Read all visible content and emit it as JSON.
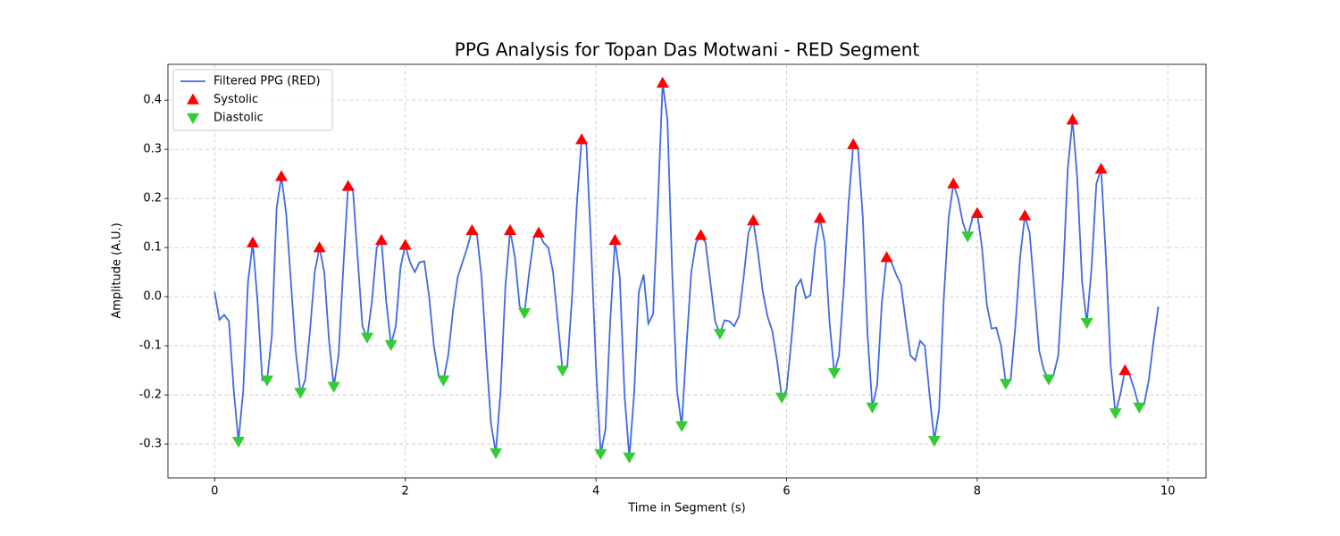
{
  "chart_data": {
    "type": "line",
    "title": "PPG Analysis for Topan Das Motwani - RED Segment",
    "x_label": "Time in Segment (s)",
    "y_label": "Amplitude (A.U.)",
    "xlim": [
      -0.49,
      10.4
    ],
    "ylim": [
      -0.369,
      0.473
    ],
    "xticks": [
      0,
      2,
      4,
      6,
      8,
      10
    ],
    "yticks": [
      -0.3,
      -0.2,
      -0.1,
      {
        "value": 0,
        "label": "0.0"
      },
      0.1,
      0.2,
      0.3,
      0.4
    ],
    "grid": true,
    "legend": "upper left",
    "series": [
      {
        "name": "Filtered PPG (RED)",
        "color": "#4169e1",
        "marker": "line",
        "x": [
          0,
          0.05,
          0.1,
          0.15,
          0.2,
          0.25,
          0.3,
          0.35,
          0.4,
          0.45,
          0.5,
          0.55,
          0.6,
          0.65,
          0.7,
          0.75,
          0.8,
          0.85,
          0.9,
          0.95,
          1.0,
          1.05,
          1.1,
          1.15,
          1.2,
          1.25,
          1.3,
          1.35,
          1.4,
          1.45,
          1.5,
          1.55,
          1.6,
          1.65,
          1.7,
          1.75,
          1.8,
          1.85,
          1.9,
          1.95,
          2.0,
          2.05,
          2.1,
          2.15,
          2.2,
          2.25,
          2.3,
          2.35,
          2.4,
          2.45,
          2.5,
          2.55,
          2.6,
          2.65,
          2.7,
          2.75,
          2.8,
          2.85,
          2.9,
          2.95,
          3.0,
          3.05,
          3.1,
          3.15,
          3.2,
          3.25,
          3.3,
          3.35,
          3.4,
          3.45,
          3.5,
          3.55,
          3.6,
          3.65,
          3.7,
          3.75,
          3.8,
          3.85,
          3.9,
          3.95,
          4.0,
          4.05,
          4.1,
          4.15,
          4.2,
          4.25,
          4.3,
          4.35,
          4.4,
          4.45,
          4.5,
          4.55,
          4.6,
          4.65,
          4.7,
          4.75,
          4.8,
          4.85,
          4.9,
          4.95,
          5.0,
          5.05,
          5.1,
          5.15,
          5.2,
          5.25,
          5.3,
          5.35,
          5.4,
          5.45,
          5.5,
          5.55,
          5.6,
          5.65,
          5.7,
          5.75,
          5.8,
          5.85,
          5.9,
          5.95,
          6.0,
          6.05,
          6.1,
          6.15,
          6.2,
          6.25,
          6.3,
          6.35,
          6.4,
          6.45,
          6.5,
          6.55,
          6.6,
          6.65,
          6.7,
          6.75,
          6.8,
          6.85,
          6.9,
          6.95,
          7.0,
          7.05,
          7.1,
          7.15,
          7.2,
          7.25,
          7.3,
          7.35,
          7.4,
          7.45,
          7.5,
          7.55,
          7.6,
          7.65,
          7.7,
          7.75,
          7.8,
          7.85,
          7.9,
          7.95,
          8.0,
          8.05,
          8.1,
          8.15,
          8.2,
          8.25,
          8.3,
          8.35,
          8.4,
          8.45,
          8.5,
          8.55,
          8.6,
          8.65,
          8.7,
          8.75,
          8.8,
          8.85,
          8.9,
          8.95,
          9.0,
          9.05,
          9.1,
          9.15,
          9.2,
          9.25,
          9.3,
          9.35,
          9.4,
          9.45,
          9.5,
          9.55,
          9.6,
          9.65,
          9.7,
          9.75,
          9.8,
          9.85,
          9.9
        ],
        "values": [
          0.01,
          -0.047,
          -0.037,
          -0.05,
          -0.19,
          -0.295,
          -0.19,
          0.03,
          0.11,
          -0.01,
          -0.17,
          -0.17,
          -0.08,
          0.18,
          0.245,
          0.17,
          0.03,
          -0.11,
          -0.195,
          -0.17,
          -0.07,
          0.05,
          0.1,
          0.05,
          -0.09,
          -0.183,
          -0.12,
          0.06,
          0.225,
          0.22,
          0.08,
          -0.06,
          -0.083,
          -0.01,
          0.1,
          0.115,
          -0.01,
          -0.098,
          -0.06,
          0.06,
          0.105,
          0.07,
          0.05,
          0.07,
          0.072,
          0.0,
          -0.1,
          -0.16,
          -0.17,
          -0.12,
          -0.03,
          0.04,
          0.07,
          0.1,
          0.135,
          0.13,
          0.04,
          -0.12,
          -0.26,
          -0.318,
          -0.19,
          0.02,
          0.135,
          0.08,
          -0.02,
          -0.033,
          0.05,
          0.12,
          0.13,
          0.11,
          0.1,
          0.05,
          -0.05,
          -0.15,
          -0.14,
          0.0,
          0.19,
          0.32,
          0.31,
          0.1,
          -0.14,
          -0.32,
          -0.27,
          -0.05,
          0.115,
          0.04,
          -0.2,
          -0.327,
          -0.2,
          0.01,
          0.045,
          -0.055,
          -0.035,
          0.19,
          0.435,
          0.36,
          0.05,
          -0.19,
          -0.263,
          -0.1,
          0.05,
          0.11,
          0.125,
          0.11,
          0.03,
          -0.05,
          -0.075,
          -0.048,
          -0.05,
          -0.06,
          -0.04,
          0.04,
          0.13,
          0.155,
          0.09,
          0.01,
          -0.04,
          -0.07,
          -0.13,
          -0.205,
          -0.19,
          -0.09,
          0.02,
          0.035,
          -0.003,
          0.003,
          0.1,
          0.16,
          0.11,
          -0.05,
          -0.155,
          -0.12,
          0.02,
          0.19,
          0.31,
          0.3,
          0.16,
          -0.08,
          -0.225,
          -0.18,
          -0.01,
          0.08,
          0.07,
          0.045,
          0.025,
          -0.05,
          -0.12,
          -0.13,
          -0.09,
          -0.1,
          -0.2,
          -0.293,
          -0.23,
          0.0,
          0.16,
          0.23,
          0.2,
          0.15,
          0.123,
          0.16,
          0.17,
          0.1,
          -0.015,
          -0.065,
          -0.063,
          -0.1,
          -0.177,
          -0.17,
          -0.06,
          0.08,
          0.165,
          0.13,
          0.01,
          -0.11,
          -0.15,
          -0.168,
          -0.16,
          -0.12,
          0.04,
          0.26,
          0.36,
          0.24,
          0.03,
          -0.053,
          0.06,
          0.23,
          0.26,
          0.08,
          -0.14,
          -0.237,
          -0.2,
          -0.15,
          -0.16,
          -0.19,
          -0.225,
          -0.22,
          -0.17,
          -0.09,
          -0.02
        ]
      },
      {
        "name": "Systolic",
        "color": "#ff0000",
        "marker": "up",
        "x": [
          0.4,
          0.7,
          1.1,
          1.4,
          1.75,
          2.0,
          2.7,
          3.1,
          3.4,
          3.85,
          4.2,
          4.7,
          5.1,
          5.65,
          6.35,
          6.7,
          7.05,
          7.75,
          8.0,
          8.5,
          9.0,
          9.3,
          9.55
        ],
        "values": [
          0.11,
          0.245,
          0.1,
          0.225,
          0.115,
          0.105,
          0.135,
          0.135,
          0.13,
          0.32,
          0.115,
          0.435,
          0.125,
          0.155,
          0.16,
          0.31,
          0.08,
          0.23,
          0.17,
          0.165,
          0.36,
          0.26,
          -0.15
        ]
      },
      {
        "name": "Diastolic",
        "color": "#32cd32",
        "marker": "down",
        "x": [
          0.25,
          0.55,
          0.9,
          1.25,
          1.6,
          1.85,
          2.4,
          2.95,
          3.25,
          3.65,
          4.05,
          4.35,
          4.9,
          5.3,
          5.95,
          6.5,
          6.9,
          7.55,
          7.9,
          8.3,
          8.75,
          9.15,
          9.45,
          9.7
        ],
        "values": [
          -0.295,
          -0.17,
          -0.195,
          -0.183,
          -0.083,
          -0.098,
          -0.17,
          -0.318,
          -0.033,
          -0.15,
          -0.32,
          -0.327,
          -0.263,
          -0.075,
          -0.205,
          -0.155,
          -0.225,
          -0.293,
          0.123,
          -0.177,
          -0.168,
          -0.053,
          -0.237,
          -0.225
        ]
      }
    ]
  }
}
